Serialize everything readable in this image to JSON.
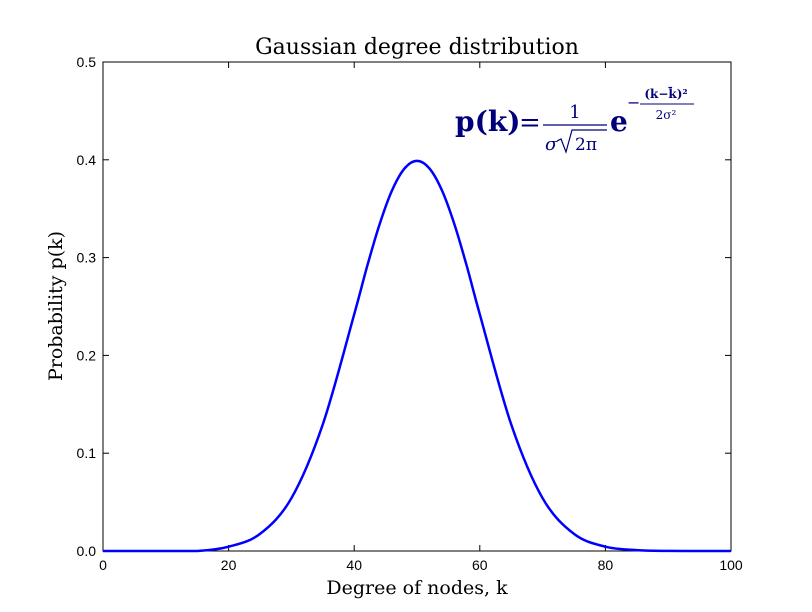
{
  "chart_data": {
    "type": "line",
    "title": "Gaussian degree distribution",
    "xlabel": "Degree of nodes, k",
    "ylabel": "Probability p(k)",
    "xlim": [
      0,
      100
    ],
    "ylim": [
      0,
      0.5
    ],
    "xticks": [
      0,
      20,
      40,
      60,
      80,
      100
    ],
    "yticks": [
      0.0,
      0.1,
      0.2,
      0.3,
      0.4,
      0.5
    ],
    "xtick_labels": [
      "0",
      "20",
      "40",
      "60",
      "80",
      "100"
    ],
    "ytick_labels": [
      "0.0",
      "0.1",
      "0.2",
      "0.3",
      "0.4",
      "0.5"
    ],
    "grid": false,
    "line_color": "#0000ff",
    "formula_color": "#00007a",
    "series": [
      {
        "x": [
          0,
          5,
          10,
          15,
          20,
          25,
          30,
          35,
          40,
          42,
          44,
          46,
          48,
          50,
          52,
          54,
          56,
          58,
          60,
          65,
          70,
          75,
          80,
          85,
          90,
          95,
          100
        ],
        "y": [
          0.0,
          0.0,
          0.0,
          0.0,
          0.0044,
          0.0175,
          0.054,
          0.1295,
          0.242,
          0.2897,
          0.3332,
          0.3683,
          0.391,
          0.3989,
          0.391,
          0.3683,
          0.3332,
          0.2897,
          0.242,
          0.1295,
          0.054,
          0.0175,
          0.0044,
          0.0009,
          0.0001,
          0.0,
          0.0
        ]
      }
    ],
    "annotation": {
      "lhs": "p(k)",
      "equals": "=",
      "numerator": "1",
      "denominator_sigma": "σ",
      "denominator_root": "2π",
      "base": "e",
      "exp_sign": "−",
      "exp_numerator": "(k−k̄)²",
      "exp_denominator": "2σ²"
    }
  }
}
